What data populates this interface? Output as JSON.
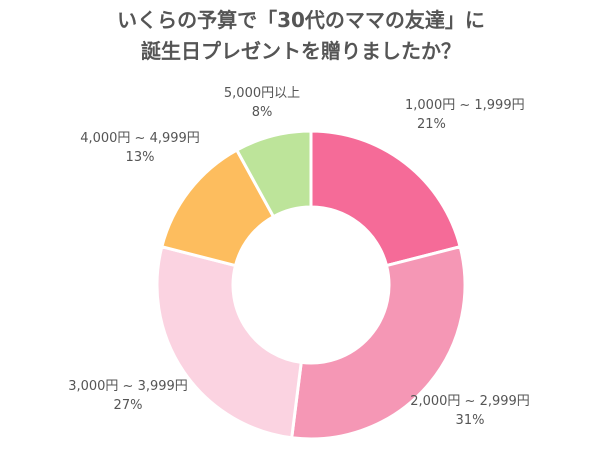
{
  "chart_data": {
    "type": "pie",
    "variant": "donut",
    "title": [
      "いくらの予算で「30代のママの友達」に",
      "誕生日プレゼントを贈りましたか？"
    ],
    "categories": [
      "1,000円 ~ 1,999円",
      "2,000円 ~ 2,999円",
      "3,000円 ~ 3,999円",
      "4,000円 ~ 4,999円",
      "5,000円以上"
    ],
    "values": [
      21,
      31,
      27,
      13,
      8
    ],
    "value_labels": [
      "21%",
      "31%",
      "27%",
      "13%",
      "8%"
    ],
    "colors": [
      "#F56B98",
      "#F597B5",
      "#FBD3E1",
      "#FDBD5E",
      "#BDE49A"
    ],
    "unit": "%"
  }
}
